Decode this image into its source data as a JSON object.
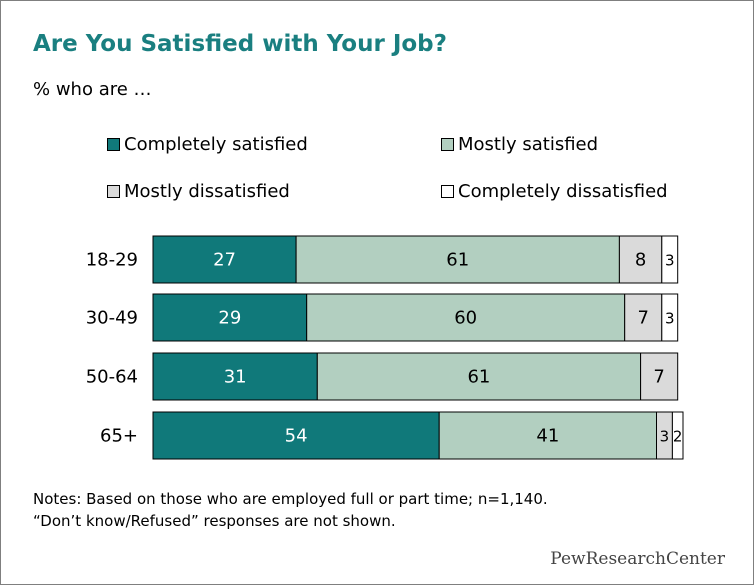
{
  "title": "Are You Satisfied with Your Job?",
  "subtitle": "% who are …",
  "notes": {
    "line1": "Notes: Based on those who are employed full or part time; n=1,140.",
    "line2": "“Don’t know/Refused” responses are not shown."
  },
  "logo": "PewResearchCenter",
  "chart_data": {
    "type": "bar",
    "orientation": "horizontal",
    "stacked": true,
    "xlim": [
      0,
      100
    ],
    "grid": false,
    "legend_position": "top",
    "categories": [
      "18-29",
      "30-49",
      "50-64",
      "65+"
    ],
    "series": [
      {
        "name": "Completely satisfied",
        "values": [
          27,
          29,
          31,
          54
        ],
        "color": "#10797a",
        "label_color": "#ffffff"
      },
      {
        "name": "Mostly satisfied",
        "values": [
          61,
          60,
          61,
          41
        ],
        "color": "#b2cfc0",
        "label_color": "#000000"
      },
      {
        "name": "Mostly dissatisfied",
        "values": [
          8,
          7,
          7,
          3
        ],
        "color": "#dadada",
        "label_color": "#000000"
      },
      {
        "name": "Completely dissatisfied",
        "values": [
          3,
          3,
          null,
          2
        ],
        "color": "#ffffff",
        "label_color": "#000000"
      }
    ],
    "data_labels": [
      [
        "27",
        "61",
        "8",
        "3"
      ],
      [
        "29",
        "60",
        "7",
        "3"
      ],
      [
        "31",
        "61",
        "7",
        ""
      ],
      [
        "54",
        "41",
        "3",
        "2"
      ]
    ]
  }
}
